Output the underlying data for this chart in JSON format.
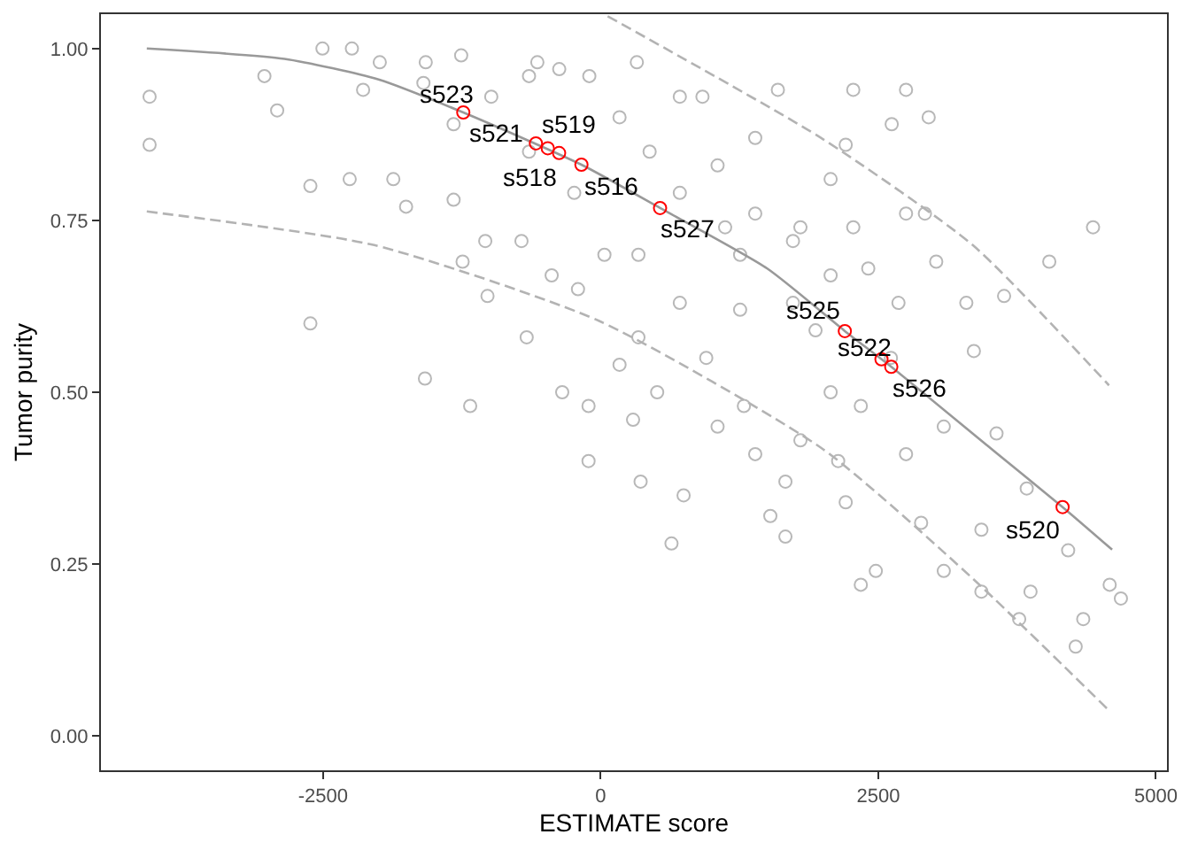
{
  "chart_data": {
    "type": "scatter",
    "xlabel": "ESTIMATE score",
    "ylabel": "Tumor purity",
    "xlim": [
      -4500,
      5100
    ],
    "xticks": [
      -2500,
      0,
      2500,
      5000
    ],
    "ylim": [
      -0.05,
      1.05
    ],
    "yticks": [
      {
        "value": 0,
        "label": "0.00"
      },
      {
        "value": 0.25,
        "label": "0.25"
      },
      {
        "value": 0.5,
        "label": "0.50"
      },
      {
        "value": 0.75,
        "label": "0.75"
      },
      {
        "value": 1,
        "label": "1.00"
      }
    ],
    "marker": "circle",
    "series": [
      {
        "color": "#b8b8b8",
        "x": [
          -4062,
          -4062,
          -3028,
          -2913,
          -2614,
          -2614,
          -2505,
          -2240,
          -2260,
          -1989,
          -1867,
          -1752,
          -1582,
          -1575,
          -1324,
          -1256,
          -1324,
          -1175,
          -1243,
          -1039,
          -1019,
          -713,
          -666,
          -570,
          -645,
          -346,
          -441,
          -373,
          -204,
          -109,
          -109,
          -102,
          34,
          170,
          292,
          326,
          340,
          360,
          509,
          638,
          747,
          713,
          917,
          951,
          1121,
          1053,
          1256,
          1290,
          1392,
          1596,
          1392,
          1528,
          1664,
          1664,
          1799,
          1799,
          1935,
          2071,
          2071,
          2139,
          2207,
          2275,
          2275,
          2343,
          2207,
          2478,
          2621,
          2750,
          2750,
          2954,
          2920,
          2682,
          2750,
          2886,
          3090,
          3090,
          3293,
          3361,
          3429,
          3565,
          3633,
          3837,
          3871,
          3429,
          3769,
          4040,
          4210,
          4278,
          4346,
          4434,
          4584,
          4685,
          170,
          441,
          713,
          1053,
          1392,
          1732,
          2071,
          1732,
          1256,
          713,
          340,
          -238,
          -645,
          -985,
          -1596,
          -2139,
          2410,
          2614,
          2343,
          3022
        ],
        "values": [
          0.93,
          0.86,
          0.96,
          0.91,
          0.8,
          0.6,
          1.0,
          1.0,
          0.81,
          0.98,
          0.81,
          0.77,
          0.52,
          0.98,
          0.89,
          0.99,
          0.78,
          0.48,
          0.69,
          0.72,
          0.64,
          0.72,
          0.58,
          0.98,
          0.96,
          0.5,
          0.67,
          0.97,
          0.65,
          0.48,
          0.4,
          0.96,
          0.7,
          0.54,
          0.46,
          0.98,
          0.58,
          0.37,
          0.5,
          0.28,
          0.35,
          0.93,
          0.93,
          0.55,
          0.74,
          0.45,
          0.62,
          0.48,
          0.87,
          0.94,
          0.41,
          0.32,
          0.37,
          0.29,
          0.74,
          0.43,
          0.59,
          0.81,
          0.5,
          0.4,
          0.86,
          0.94,
          0.74,
          0.22,
          0.34,
          0.24,
          0.89,
          0.94,
          0.76,
          0.9,
          0.76,
          0.63,
          0.41,
          0.31,
          0.45,
          0.24,
          0.63,
          0.56,
          0.3,
          0.44,
          0.64,
          0.36,
          0.21,
          0.21,
          0.17,
          0.69,
          0.27,
          0.13,
          0.17,
          0.74,
          0.22,
          0.2,
          0.9,
          0.85,
          0.79,
          0.83,
          0.76,
          0.72,
          0.67,
          0.63,
          0.7,
          0.63,
          0.7,
          0.79,
          0.85,
          0.93,
          0.95,
          0.94,
          0.68,
          0.55,
          0.48,
          0.69
        ]
      },
      {
        "type": "line",
        "color": "#999999",
        "line_style": "solid",
        "marker": "none",
        "x": [
          -4087,
          -2847,
          -2000,
          -1237,
          -173,
          535,
          1500,
          2199,
          2617,
          3500,
          4160,
          4606
        ],
        "values": [
          1.0,
          0.985,
          0.955,
          0.907,
          0.831,
          0.768,
          0.68,
          0.589,
          0.537,
          0.42,
          0.333,
          0.271
        ]
      },
      {
        "type": "line",
        "color": "#b3b3b3",
        "line_style": "dashed",
        "marker": "none",
        "x": [
          63,
          2004,
          3351,
          4578
        ],
        "values": [
          1.047,
          0.868,
          0.714,
          0.51
        ]
      },
      {
        "type": "line",
        "color": "#b3b3b3",
        "line_style": "dashed",
        "marker": "none",
        "x": [
          -4087,
          -2039,
          -17,
          2004,
          3351,
          4578
        ],
        "values": [
          0.763,
          0.714,
          0.604,
          0.417,
          0.229,
          0.037
        ]
      },
      {
        "color": "#ff0000",
        "x": [
          -1237,
          -583,
          -476,
          -374,
          -173,
          535,
          2199,
          2529,
          2617,
          4160
        ],
        "values": [
          0.907,
          0.862,
          0.855,
          0.848,
          0.831,
          0.768,
          0.589,
          0.548,
          0.537,
          0.333
        ]
      }
    ],
    "annotations": [
      {
        "text": "s523",
        "x": -1237,
        "y": 0.907
      },
      {
        "text": "s521",
        "x": -583,
        "y": 0.862
      },
      {
        "text": "s518",
        "x": -476,
        "y": 0.855
      },
      {
        "text": "s519",
        "x": -374,
        "y": 0.848
      },
      {
        "text": "s516",
        "x": -173,
        "y": 0.831
      },
      {
        "text": "s527",
        "x": 535,
        "y": 0.768
      },
      {
        "text": "s525",
        "x": 2199,
        "y": 0.589
      },
      {
        "text": "s522",
        "x": 2529,
        "y": 0.548
      },
      {
        "text": "s526",
        "x": 2617,
        "y": 0.537
      },
      {
        "text": "s520",
        "x": 4160,
        "y": 0.333
      }
    ]
  }
}
